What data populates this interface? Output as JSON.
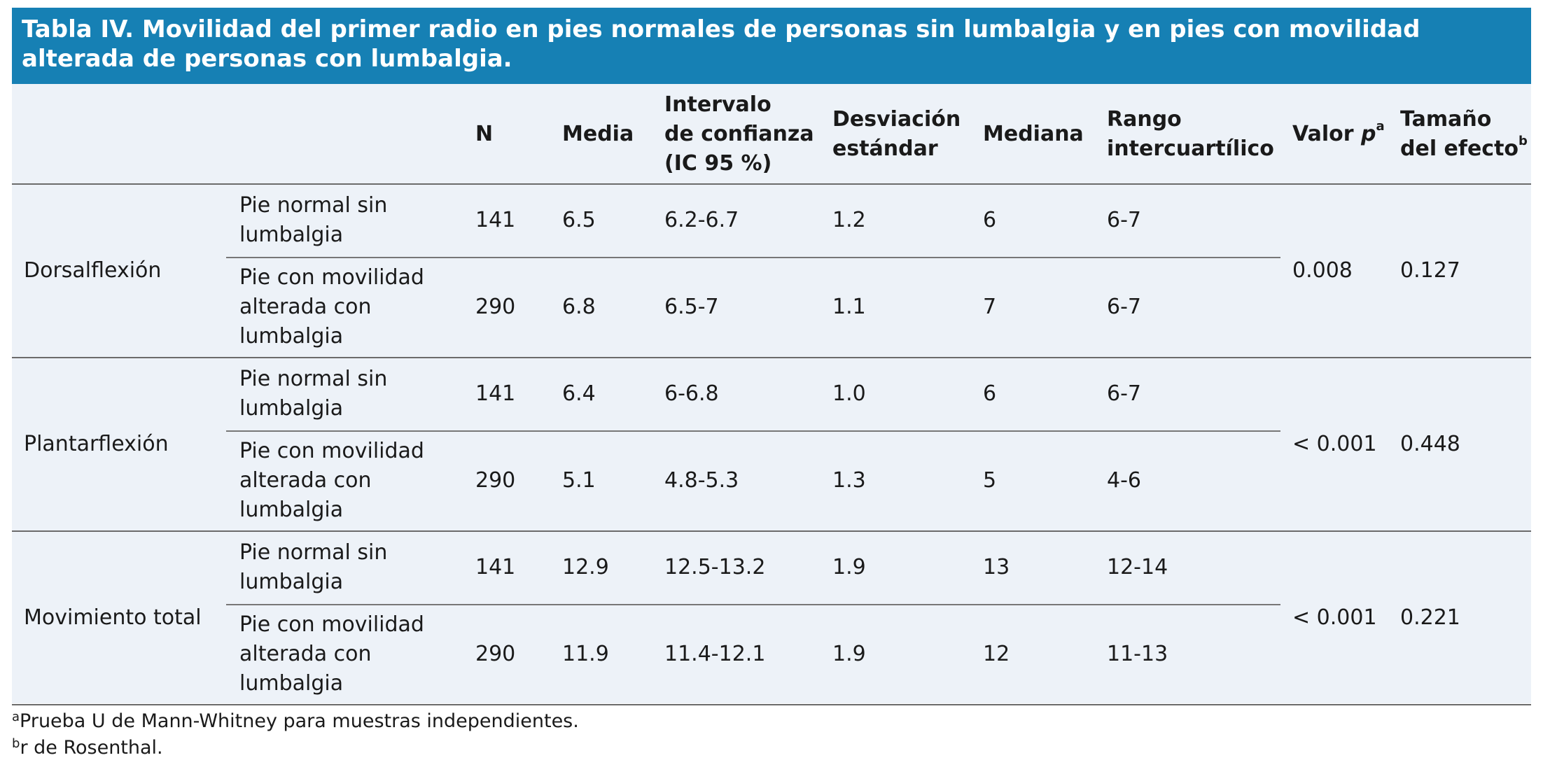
{
  "title": "Tabla IV. Movilidad del primer radio en pies normales de personas sin lumbalgia y en pies con movilidad alterada de personas con lumbalgia.",
  "table": {
    "headers": [
      {
        "lines": [
          "N"
        ]
      },
      {
        "lines": [
          "Media"
        ]
      },
      {
        "lines": [
          "Intervalo",
          "de confianza",
          "(IC 95 %)"
        ]
      },
      {
        "lines": [
          "Desviación",
          "estándar"
        ]
      },
      {
        "lines": [
          "Mediana"
        ]
      },
      {
        "lines": [
          "Rango",
          "intercuartílico"
        ]
      },
      {
        "text": "Valor",
        "italic": "p",
        "sup": "a"
      },
      {
        "lines": [
          "Tamaño",
          "del efecto"
        ],
        "sup": "b"
      }
    ],
    "groups": [
      {
        "label": "Dorsalflexión",
        "p": "0.008",
        "effect": "0.127",
        "rows": [
          {
            "subgroup": [
              "Pie normal sin",
              "lumbalgia"
            ],
            "cells": [
              "141",
              "6.5",
              "6.2-6.7",
              "1.2",
              "6",
              "6-7"
            ]
          },
          {
            "subgroup": [
              "Pie con movilidad",
              "alterada con",
              "lumbalgia"
            ],
            "cells": [
              "290",
              "6.8",
              "6.5-7",
              "1.1",
              "7",
              "6-7"
            ]
          }
        ]
      },
      {
        "label": "Plantarflexión",
        "p": "< 0.001",
        "effect": "0.448",
        "rows": [
          {
            "subgroup": [
              "Pie normal sin",
              "lumbalgia"
            ],
            "cells": [
              "141",
              "6.4",
              "6-6.8",
              "1.0",
              "6",
              "6-7"
            ]
          },
          {
            "subgroup": [
              "Pie con movilidad",
              "alterada con",
              "lumbalgia"
            ],
            "cells": [
              "290",
              "5.1",
              "4.8-5.3",
              "1.3",
              "5",
              "4-6"
            ]
          }
        ]
      },
      {
        "label": "Movimiento total",
        "p": "< 0.001",
        "effect": "0.221",
        "rows": [
          {
            "subgroup": [
              "Pie normal sin",
              "lumbalgia"
            ],
            "cells": [
              "141",
              "12.9",
              "12.5-13.2",
              "1.9",
              "13",
              "12-14"
            ]
          },
          {
            "subgroup": [
              "Pie con movilidad",
              "alterada con",
              "lumbalgia"
            ],
            "cells": [
              "290",
              "11.9",
              "11.4-12.1",
              "1.9",
              "12",
              "11-13"
            ]
          }
        ]
      }
    ]
  },
  "footnotes": [
    {
      "sup": "a",
      "text": "Prueba U de Mann-Whitney para muestras independientes."
    },
    {
      "sup": "b",
      "text": "r de Rosenthal."
    }
  ]
}
